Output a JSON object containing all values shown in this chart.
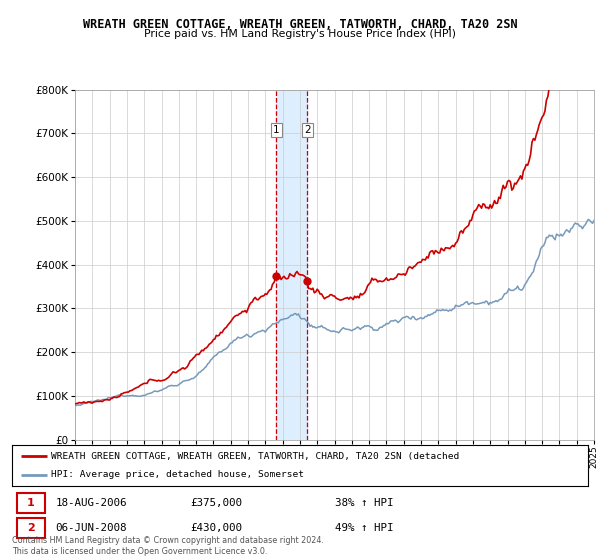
{
  "title1": "WREATH GREEN COTTAGE, WREATH GREEN, TATWORTH, CHARD, TA20 2SN",
  "title2": "Price paid vs. HM Land Registry's House Price Index (HPI)",
  "legend_line1": "WREATH GREEN COTTAGE, WREATH GREEN, TATWORTH, CHARD, TA20 2SN (detached",
  "legend_line2": "HPI: Average price, detached house, Somerset",
  "transaction1_date": "18-AUG-2006",
  "transaction1_price": "£375,000",
  "transaction1_hpi": "38% ↑ HPI",
  "transaction2_date": "06-JUN-2008",
  "transaction2_price": "£430,000",
  "transaction2_hpi": "49% ↑ HPI",
  "footer": "Contains HM Land Registry data © Crown copyright and database right 2024.\nThis data is licensed under the Open Government Licence v3.0.",
  "red_color": "#cc0000",
  "blue_color": "#7799bb",
  "shaded_color": "#ddeeff",
  "grid_color": "#cccccc",
  "background_color": "#ffffff",
  "ymax": 800000,
  "transaction1_x": 2006.63,
  "transaction2_x": 2008.43
}
